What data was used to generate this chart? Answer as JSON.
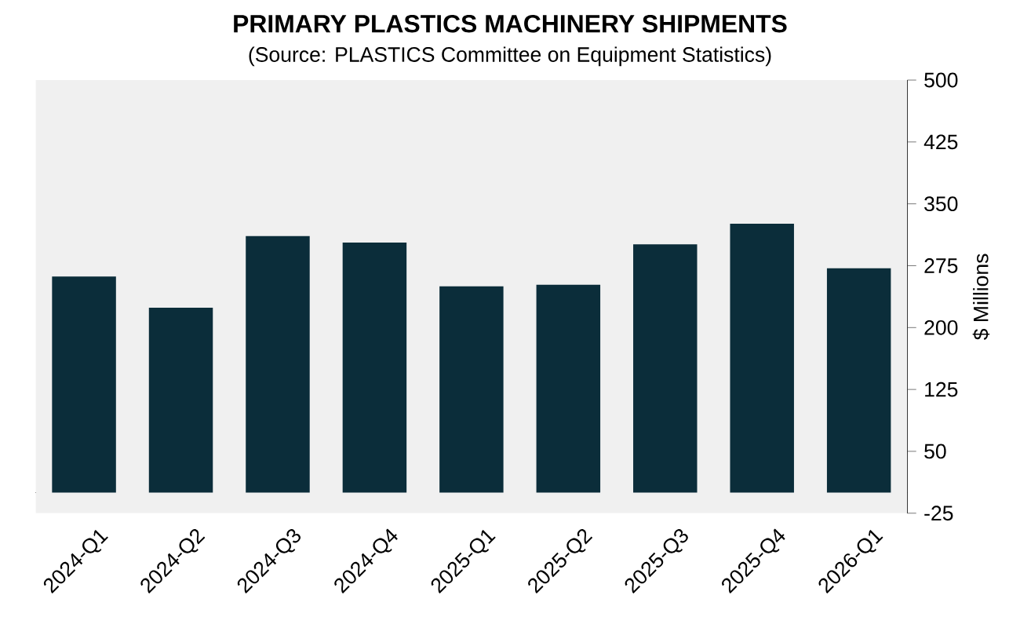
{
  "chart_data": {
    "type": "bar",
    "title": "PRIMARY PLASTICS MACHINERY SHIPMENTS",
    "subtitle": "(Source: PLASTICS Committee on Equipment Statistics)",
    "ylabel": "$ Millions",
    "categories": [
      "2024-Q1",
      "2024-Q2",
      "2024-Q3",
      "2024-Q4",
      "2025-Q1",
      "2025-Q2",
      "2025-Q3",
      "2025-Q4",
      "2026-Q1"
    ],
    "values": [
      262,
      224,
      311,
      303,
      250,
      252,
      301,
      326,
      272
    ],
    "color": "#0b2d3a",
    "ylim": [
      -25,
      500
    ],
    "yticks": [
      -25,
      50,
      125,
      200,
      275,
      350,
      425,
      500
    ],
    "grid": false
  }
}
